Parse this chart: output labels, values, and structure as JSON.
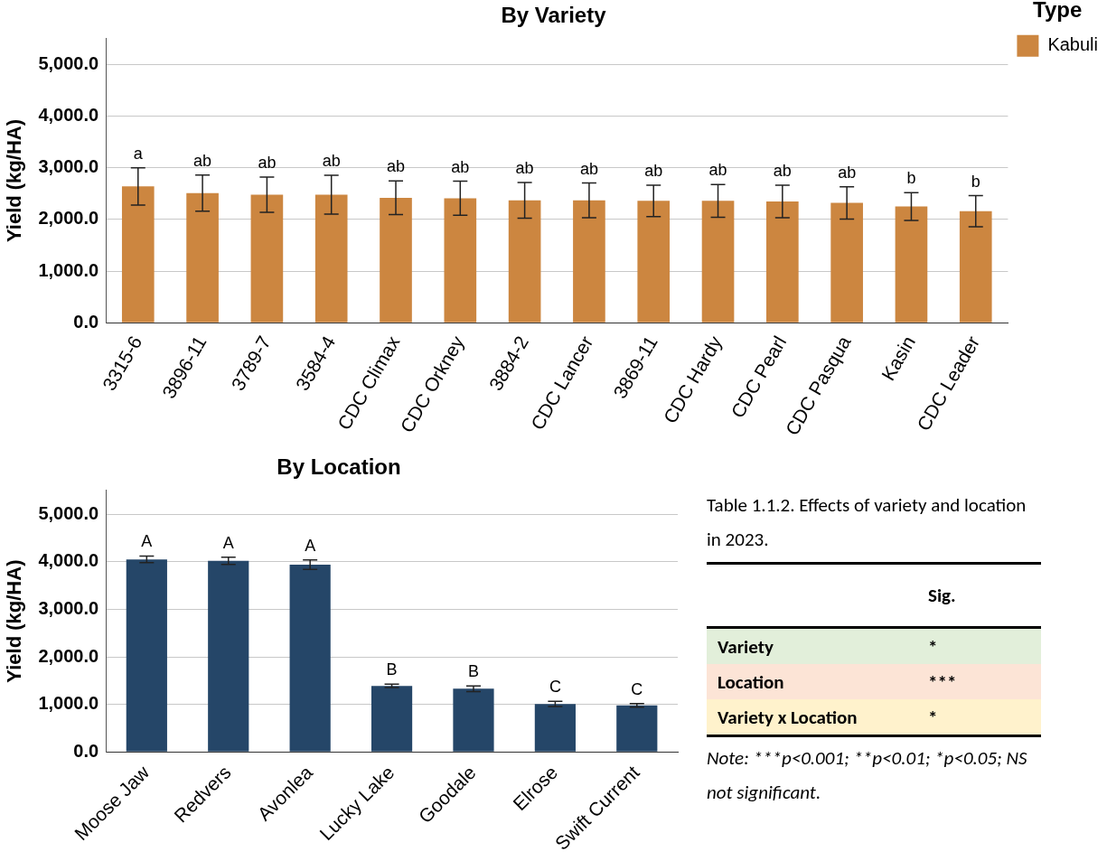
{
  "chart_data": [
    {
      "type": "bar",
      "title": "By Variety",
      "ylabel": "Yield (kg/HA)",
      "legend_title": "Type",
      "legend": "top right",
      "grid": "y",
      "categories": [
        "3315-6",
        "3896-11",
        "3789-7",
        "3584-4",
        "CDC Climax",
        "CDC Orkney",
        "3884-2",
        "CDC Lancer",
        "3869-11",
        "CDC Hardy",
        "CDC Pearl",
        "CDC Pasqua",
        "Kasin",
        "CDC Leader"
      ],
      "series": [
        {
          "name": "Kabuli",
          "color": "#cc8640",
          "values": [
            2640,
            2510,
            2480,
            2480,
            2420,
            2410,
            2370,
            2370,
            2360,
            2360,
            2350,
            2320,
            2250,
            2160
          ],
          "errors": [
            360,
            350,
            340,
            375,
            325,
            330,
            345,
            335,
            305,
            318,
            315,
            312,
            270,
            300
          ]
        }
      ],
      "ylim": [
        0,
        5500
      ],
      "yticks": [
        {
          "value": 0,
          "label": "0.0"
        },
        {
          "value": 1000,
          "label": "1,000.0"
        },
        {
          "value": 2000,
          "label": "2,000.0"
        },
        {
          "value": 3000,
          "label": "3,000.0"
        },
        {
          "value": 4000,
          "label": "4,000.0"
        },
        {
          "value": 5000,
          "label": "5,000.0"
        }
      ],
      "annotations": [
        {
          "text": "a",
          "x": "3315-6",
          "y": 3000
        },
        {
          "text": "ab",
          "x": "3896-11",
          "y": 2860
        },
        {
          "text": "ab",
          "x": "3789-7",
          "y": 2820
        },
        {
          "text": "ab",
          "x": "3584-4",
          "y": 2855
        },
        {
          "text": "ab",
          "x": "CDC Climax",
          "y": 2745
        },
        {
          "text": "ab",
          "x": "CDC Orkney",
          "y": 2740
        },
        {
          "text": "ab",
          "x": "3884-2",
          "y": 2715
        },
        {
          "text": "ab",
          "x": "CDC Lancer",
          "y": 2705
        },
        {
          "text": "ab",
          "x": "3869-11",
          "y": 2665
        },
        {
          "text": "ab",
          "x": "CDC Hardy",
          "y": 2678
        },
        {
          "text": "ab",
          "x": "CDC Pearl",
          "y": 2665
        },
        {
          "text": "ab",
          "x": "CDC Pasqua",
          "y": 2632
        },
        {
          "text": "b",
          "x": "Kasin",
          "y": 2520
        },
        {
          "text": "b",
          "x": "CDC Leader",
          "y": 2460
        }
      ]
    },
    {
      "type": "bar",
      "title": "By Location",
      "ylabel": "Yield (kg/HA)",
      "grid": "y",
      "categories": [
        "Moose Jaw",
        "Redvers",
        "Avonlea",
        "Lucky Lake",
        "Goodale",
        "Elrose",
        "Swift Current"
      ],
      "series": [
        {
          "color": "#254668",
          "values": [
            4050,
            4020,
            3940,
            1390,
            1330,
            1010,
            980
          ],
          "errors": [
            70,
            75,
            100,
            35,
            60,
            55,
            40
          ]
        }
      ],
      "ylim": [
        0,
        5500
      ],
      "yticks": [
        {
          "value": 0,
          "label": "0.0"
        },
        {
          "value": 1000,
          "label": "1,000.0"
        },
        {
          "value": 2000,
          "label": "2,000.0"
        },
        {
          "value": 3000,
          "label": "3,000.0"
        },
        {
          "value": 4000,
          "label": "4,000.0"
        },
        {
          "value": 5000,
          "label": "5,000.0"
        }
      ],
      "annotations": [
        {
          "text": "A",
          "x": "Moose Jaw",
          "y": 4120
        },
        {
          "text": "A",
          "x": "Redvers",
          "y": 4095
        },
        {
          "text": "A",
          "x": "Avonlea",
          "y": 4040
        },
        {
          "text": "B",
          "x": "Lucky Lake",
          "y": 1425
        },
        {
          "text": "B",
          "x": "Goodale",
          "y": 1390
        },
        {
          "text": "C",
          "x": "Elrose",
          "y": 1065
        },
        {
          "text": "C",
          "x": "Swift Current",
          "y": 1020
        }
      ]
    },
    {
      "type": "other",
      "title": "Table 1.1.2. Effects of variety and location in 2023.",
      "categories": [
        "Sig."
      ],
      "y_categories": [
        "Variety",
        "Location",
        "Variety x Location"
      ],
      "cell_labels": [
        [
          "*"
        ],
        [
          "***"
        ],
        [
          "*"
        ]
      ],
      "colors": [
        "#e2efda",
        "#fce4d6",
        "#fff2cc"
      ],
      "annotations": [
        "Note: ***p<0.001; **p<0.01; *p<0.05; NS not significant."
      ]
    }
  ]
}
